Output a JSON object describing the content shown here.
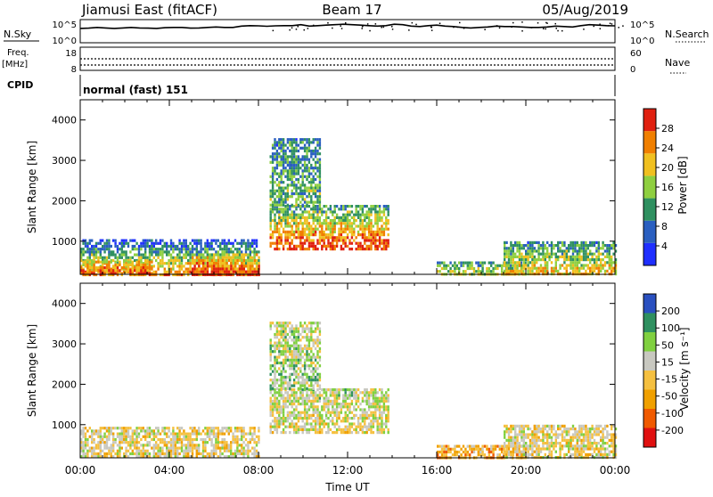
{
  "header": {
    "station": "Jiamusi East (fitACF)",
    "beam": "Beam 17",
    "date": "05/Aug/2019"
  },
  "noise_panel": {
    "left_label": "N.Sky",
    "right_label": "N.Search",
    "left_ticks": [
      "10^5",
      "10^0"
    ],
    "right_ticks": [
      "10^5",
      "10^0"
    ],
    "series_level": [
      0.62,
      0.63,
      0.66,
      0.64,
      0.62,
      0.64,
      0.66,
      0.64,
      0.63,
      0.62,
      0.65,
      0.66,
      0.66,
      0.63,
      0.64,
      0.66,
      0.68,
      0.66,
      0.66,
      0.72,
      0.74,
      0.73,
      0.71,
      0.73,
      0.74,
      0.74,
      0.78,
      0.72,
      0.74,
      0.76,
      0.78,
      0.8,
      0.78,
      0.76,
      0.74,
      0.72,
      0.74,
      0.8,
      0.78,
      0.72,
      0.7,
      0.74,
      0.76,
      0.72,
      0.7,
      0.66,
      0.64,
      0.66,
      0.68,
      0.72,
      0.7,
      0.7,
      0.68,
      0.66,
      0.66,
      0.68,
      0.72,
      0.7,
      0.68,
      0.74,
      0.78,
      0.76,
      0.74,
      0.73
    ]
  },
  "freq_panel": {
    "left_label": "Freq.",
    "left_unit": "[MHz]",
    "right_label": "Nave",
    "left_ticks": [
      "18",
      "8"
    ],
    "right_ticks": [
      "60",
      "0"
    ]
  },
  "cpid": {
    "label": "CPID",
    "value": "normal (fast) 151"
  },
  "chart_data": [
    {
      "type": "heatmap",
      "name": "power",
      "ylabel": "Slant Range [km]",
      "xlabel": "",
      "x_range_hours": [
        0,
        24
      ],
      "ylim": [
        180,
        4500
      ],
      "y_ticks": [
        1000,
        2000,
        3000,
        4000
      ],
      "colorbar_label": "Power [dB]",
      "colorbar_ticks": [
        "4",
        "8",
        "12",
        "16",
        "20",
        "24",
        "28"
      ],
      "colors": [
        "#1f2fff",
        "#2a5fc0",
        "#2f9060",
        "#8fcf40",
        "#f0c020",
        "#f07f00",
        "#e02010"
      ],
      "regions": [
        {
          "t0": 0.0,
          "t1": 8.0,
          "r0": 180,
          "r1": 1050,
          "level_low": 0.8,
          "level_high": 0.15
        },
        {
          "t0": 0.0,
          "t1": 3.2,
          "r0": 200,
          "r1": 520,
          "level_low": 0.95,
          "level_high": 0.6
        },
        {
          "t0": 5.0,
          "t1": 8.0,
          "r0": 200,
          "r1": 700,
          "level_low": 0.95,
          "level_high": 0.55
        },
        {
          "t0": 8.5,
          "t1": 13.8,
          "r0": 800,
          "r1": 1900,
          "level_low": 0.95,
          "level_high": 0.35
        },
        {
          "t0": 8.5,
          "t1": 10.8,
          "r0": 1900,
          "r1": 3550,
          "level_low": 0.45,
          "level_high": 0.3
        },
        {
          "t0": 16.0,
          "t1": 20.0,
          "r0": 180,
          "r1": 500,
          "level_low": 0.6,
          "level_high": 0.35
        },
        {
          "t0": 19.0,
          "t1": 24.0,
          "r0": 200,
          "r1": 1000,
          "level_low": 0.7,
          "level_high": 0.3
        }
      ]
    },
    {
      "type": "heatmap",
      "name": "velocity",
      "ylabel": "Slant Range [km]",
      "xlabel": "Time UT",
      "x_ticks": [
        "00:00",
        "04:00",
        "08:00",
        "12:00",
        "16:00",
        "20:00",
        "00:00"
      ],
      "x_range_hours": [
        0,
        24
      ],
      "ylim": [
        180,
        4500
      ],
      "y_ticks": [
        1000,
        2000,
        3000,
        4000
      ],
      "colorbar_label": "Velocity [m s⁻¹]",
      "colorbar_ticks": [
        "-200",
        "-100",
        "-50",
        "-15",
        "15",
        "50",
        "100",
        "200"
      ],
      "colors": [
        "#e01010",
        "#f05a00",
        "#f0a000",
        "#f5c040",
        "#c8c8c0",
        "#80d040",
        "#2f9060",
        "#2a50c0"
      ],
      "regions": [
        {
          "t0": 0.0,
          "t1": 8.0,
          "r0": 180,
          "r1": 950,
          "level_low": 0.5,
          "level_high": 0.5
        },
        {
          "t0": 8.5,
          "t1": 13.8,
          "r0": 800,
          "r1": 1900,
          "level_low": 0.5,
          "level_high": 0.6
        },
        {
          "t0": 8.5,
          "t1": 10.8,
          "r0": 1900,
          "r1": 3550,
          "level_low": 0.65,
          "level_high": 0.6
        },
        {
          "t0": 16.0,
          "t1": 20.0,
          "r0": 180,
          "r1": 500,
          "level_low": 0.3,
          "level_high": 0.4
        },
        {
          "t0": 19.0,
          "t1": 24.0,
          "r0": 200,
          "r1": 1000,
          "level_low": 0.5,
          "level_high": 0.5
        }
      ]
    }
  ]
}
